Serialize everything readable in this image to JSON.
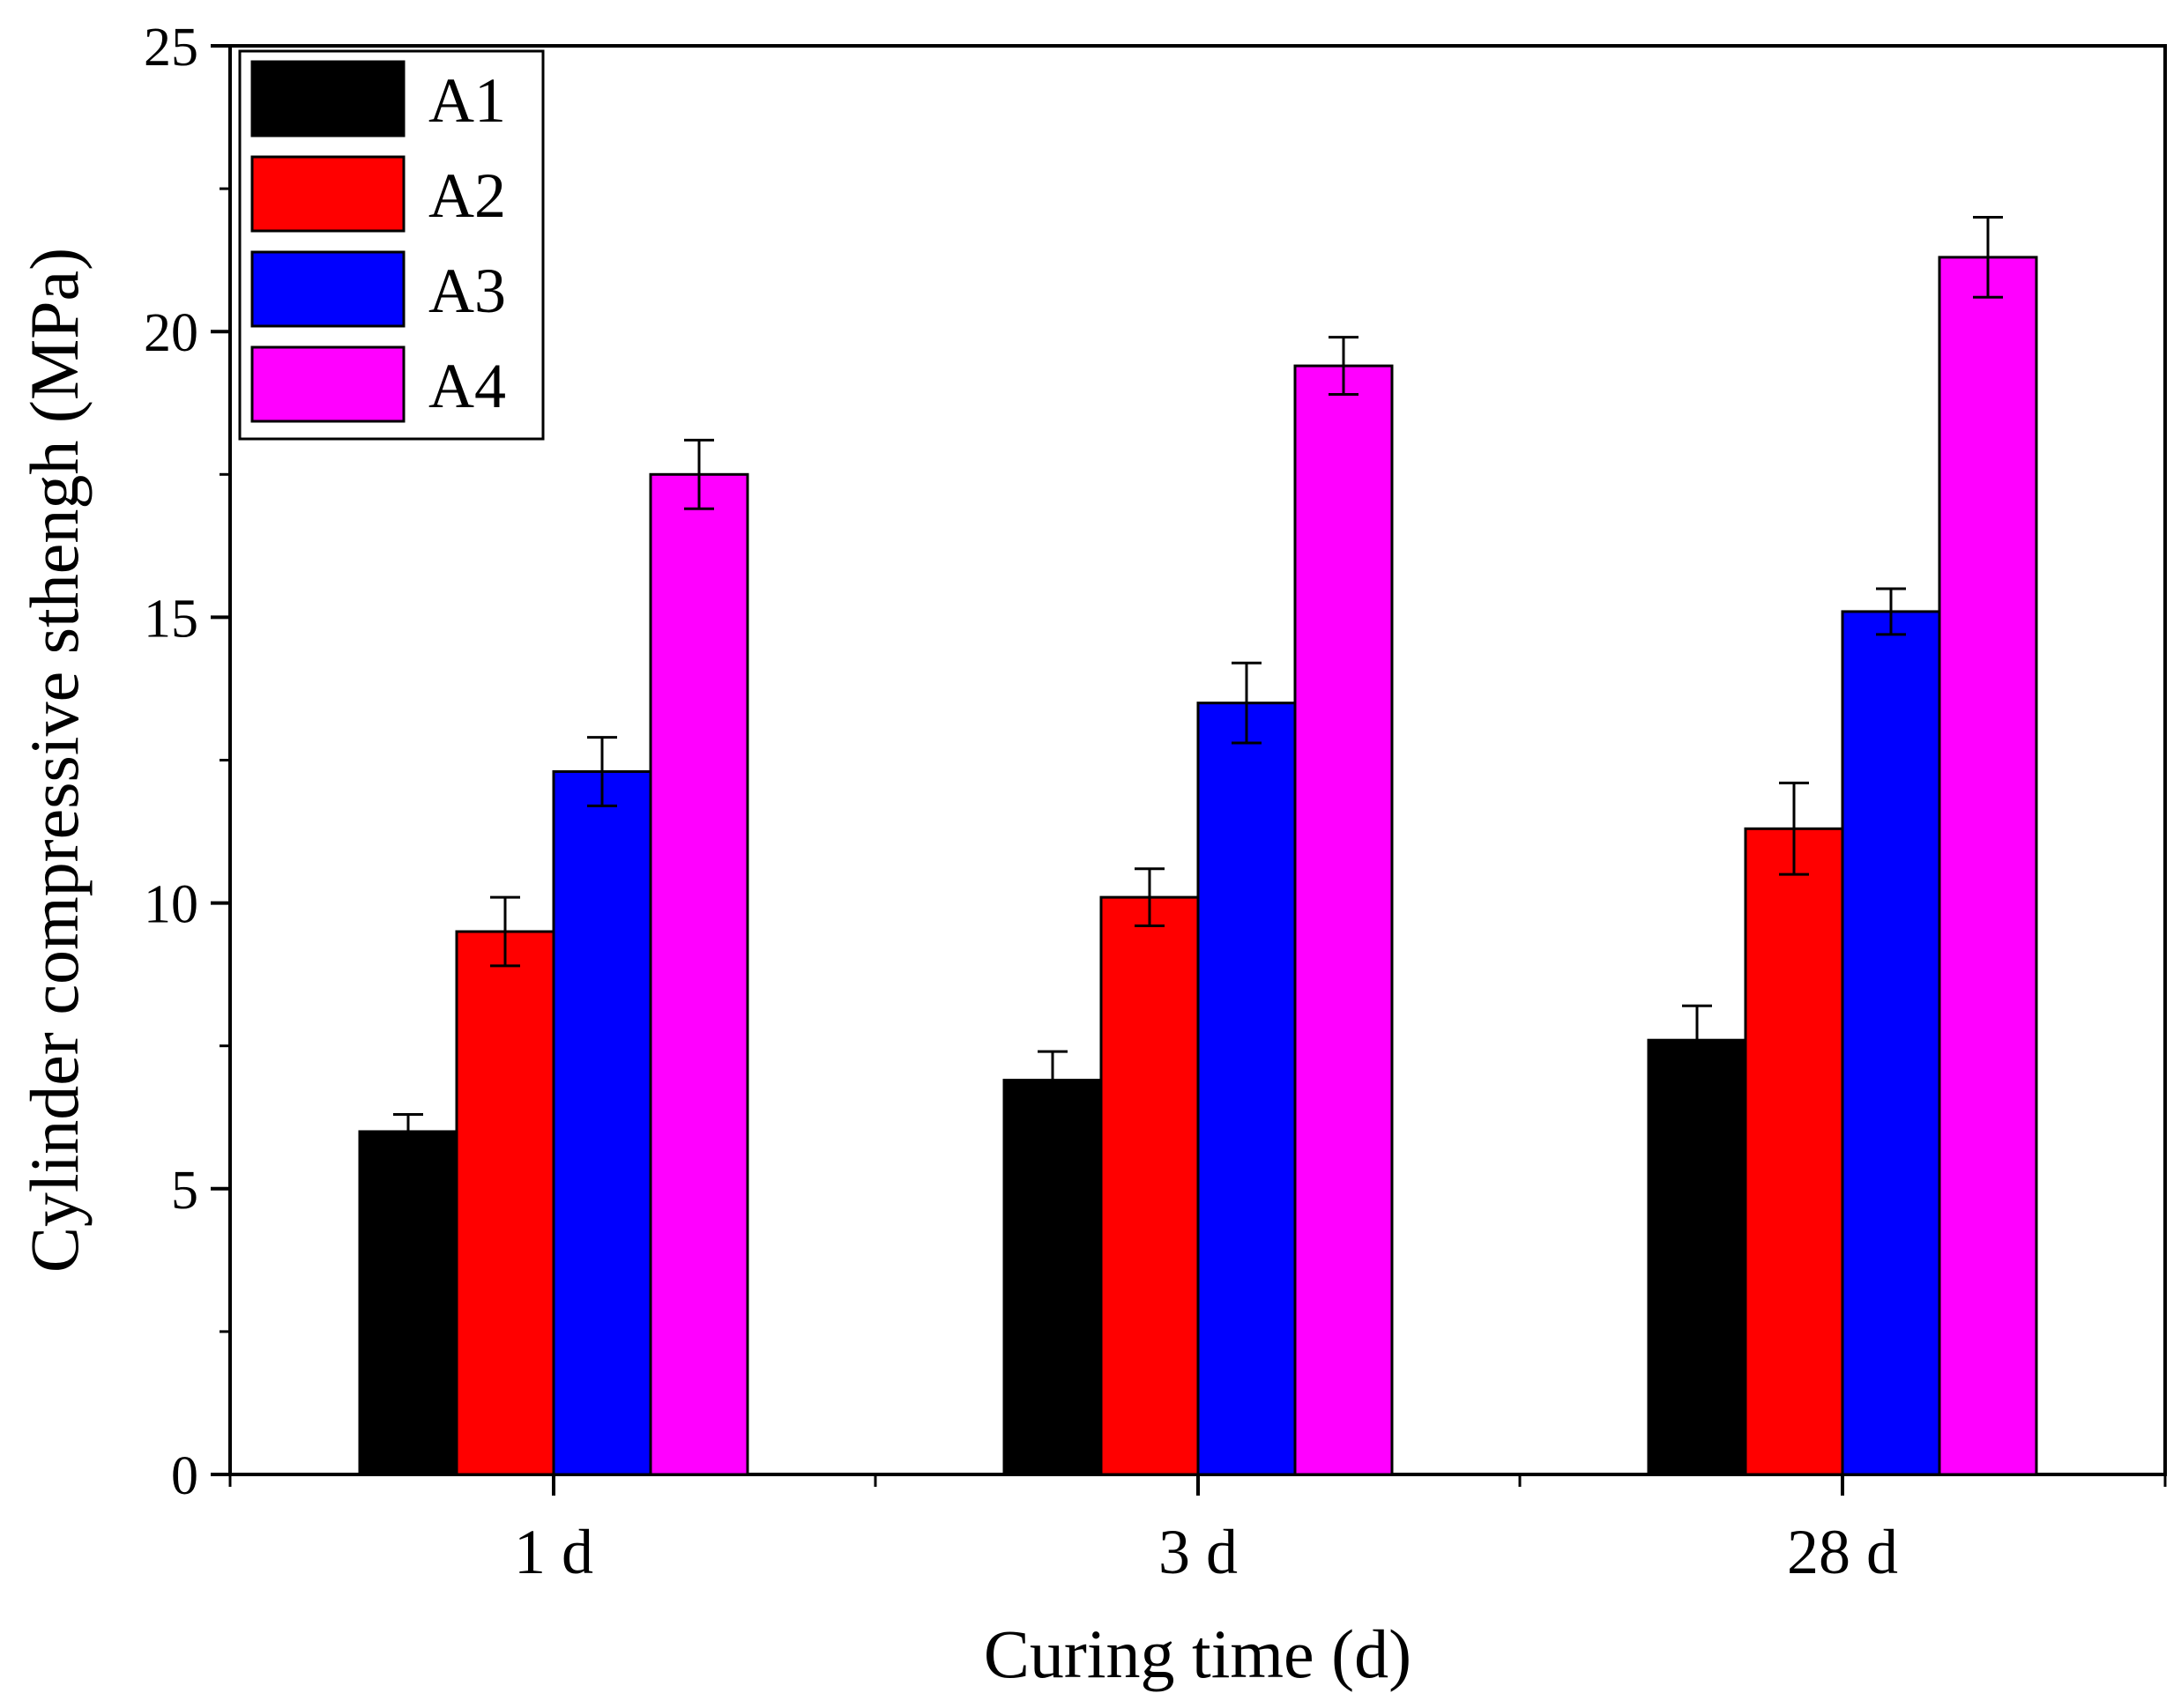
{
  "chart_data": {
    "type": "bar",
    "title": "",
    "xlabel": "Curing time (d)",
    "ylabel": "Cylinder compressive sthengh (MPa)",
    "ylim": [
      0,
      25
    ],
    "yticks": [
      0,
      5,
      10,
      15,
      20,
      25
    ],
    "categories": [
      "1 d",
      "3 d",
      "28 d"
    ],
    "series": [
      {
        "name": "A1",
        "color": "#000000",
        "values": [
          6.0,
          6.9,
          7.6
        ],
        "errors": [
          0.3,
          0.5,
          0.6
        ]
      },
      {
        "name": "A2",
        "color": "#ff0000",
        "values": [
          9.5,
          10.1,
          11.3
        ],
        "errors": [
          0.6,
          0.5,
          0.8
        ]
      },
      {
        "name": "A3",
        "color": "#0000ff",
        "values": [
          12.3,
          13.5,
          15.1
        ],
        "errors": [
          0.6,
          0.7,
          0.4
        ]
      },
      {
        "name": "A4",
        "color": "#ff00ff",
        "values": [
          17.5,
          19.4,
          21.3
        ],
        "errors": [
          0.6,
          0.5,
          0.7
        ]
      }
    ],
    "legend_position": "top-left",
    "grid": false
  }
}
